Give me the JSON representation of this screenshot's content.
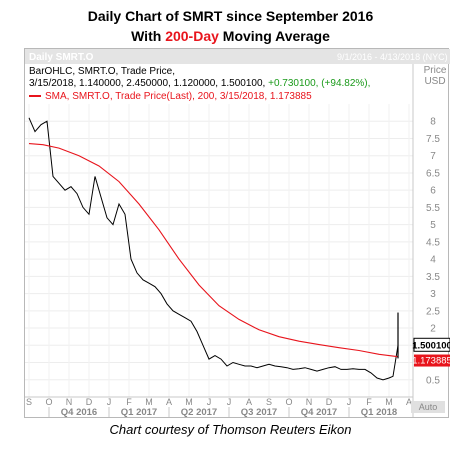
{
  "header": {
    "title_line1": "Daily Chart of SMRT since September 2016",
    "title_line2_prefix": "With ",
    "title_line2_accent": "200-Day",
    "title_line2_suffix": " Moving Average",
    "accent_color": "#e8141c"
  },
  "chart_header": {
    "name": "Daily SMRT.O",
    "range": "9/1/2016 - 4/13/2018 (NYC)",
    "price_label": "Price",
    "currency": "USD"
  },
  "legend": {
    "bar_line1": "BarOHLC, SMRT.O, Trade Price,",
    "bar_line2_prefix": "3/15/2018,  1.140000,  2.450000,  1.120000,  1.500100,",
    "bar_line2_change": " +0.730100,  (+94.82%),",
    "sma_line": "SMA, SMRT.O, Trade Price(Last),  200,  3/15/2018,  1.173885",
    "change_color": "#1a9a1a",
    "sma_color": "#e8141c"
  },
  "axis": {
    "auto_label": "Auto"
  },
  "caption": "Chart courtesy of Thomson Reuters Eikon",
  "chart_data": {
    "type": "line",
    "title": "Daily SMRT.O",
    "ylabel": "Price USD",
    "ylim": [
      0,
      8.5
    ],
    "y_ticks": [
      0.5,
      1,
      1.5,
      2,
      2.5,
      3,
      3.5,
      4,
      4.5,
      5,
      5.5,
      6,
      6.5,
      7,
      7.5,
      8
    ],
    "x_month_labels": [
      "S",
      "O",
      "N",
      "D",
      "J",
      "F",
      "M",
      "A",
      "M",
      "J",
      "J",
      "A",
      "S",
      "O",
      "N",
      "D",
      "J",
      "F",
      "M",
      "A"
    ],
    "x_quarters": [
      "Q4 2016",
      "Q1 2017",
      "Q2 2017",
      "Q3 2017",
      "Q4 2017",
      "Q1 2018"
    ],
    "series": [
      {
        "name": "BarOHLC, SMRT.O, Trade Price",
        "color": "#000000",
        "x_month": [
          0,
          0.3,
          0.6,
          0.9,
          1.2,
          1.5,
          1.8,
          2.1,
          2.4,
          2.7,
          3.0,
          3.3,
          3.6,
          3.9,
          4.2,
          4.5,
          4.8,
          5.1,
          5.4,
          5.7,
          6.0,
          6.3,
          6.6,
          6.9,
          7.2,
          7.5,
          7.8,
          8.1,
          8.4,
          8.7,
          9.0,
          9.3,
          9.6,
          9.9,
          10.2,
          10.5,
          10.8,
          11.1,
          11.4,
          11.7,
          12.0,
          12.3,
          12.6,
          12.9,
          13.2,
          13.5,
          13.8,
          14.1,
          14.4,
          14.7,
          15.0,
          15.3,
          15.6,
          15.9,
          16.2,
          16.5,
          16.8,
          17.1,
          17.4,
          17.7,
          18.0,
          18.2,
          18.45
        ],
        "values": [
          8.1,
          7.7,
          7.9,
          8.0,
          6.4,
          6.2,
          6.0,
          6.1,
          5.9,
          5.5,
          5.3,
          6.4,
          5.8,
          5.2,
          5.0,
          5.6,
          5.3,
          4.0,
          3.6,
          3.4,
          3.3,
          3.2,
          3.0,
          2.7,
          2.5,
          2.4,
          2.3,
          2.2,
          1.9,
          1.5,
          1.1,
          1.2,
          1.1,
          0.9,
          1.0,
          0.95,
          0.9,
          0.9,
          0.85,
          0.9,
          0.95,
          0.9,
          0.88,
          0.85,
          0.8,
          0.82,
          0.85,
          0.8,
          0.75,
          0.8,
          0.85,
          0.88,
          0.8,
          0.8,
          0.82,
          0.8,
          0.8,
          0.7,
          0.55,
          0.5,
          0.55,
          0.6,
          1.5
        ]
      },
      {
        "name": "SMA, SMRT.O, Trade Price(Last), 200",
        "color": "#e8141c",
        "x_month": [
          0,
          0.7,
          1.5,
          2.5,
          3.5,
          4.5,
          5.5,
          6.5,
          7.5,
          8.5,
          9.5,
          10.5,
          11.5,
          12.5,
          13.5,
          14.5,
          15.5,
          16.5,
          17.5,
          18.45
        ],
        "values": [
          7.35,
          7.32,
          7.22,
          7.0,
          6.7,
          6.25,
          5.6,
          4.85,
          4.0,
          3.25,
          2.65,
          2.25,
          1.95,
          1.75,
          1.62,
          1.52,
          1.43,
          1.35,
          1.24,
          1.17
        ]
      }
    ],
    "last_price": "1.500100",
    "last_sma": "1.173885",
    "last_price_value": 1.5001,
    "last_sma_value": 1.173885
  }
}
